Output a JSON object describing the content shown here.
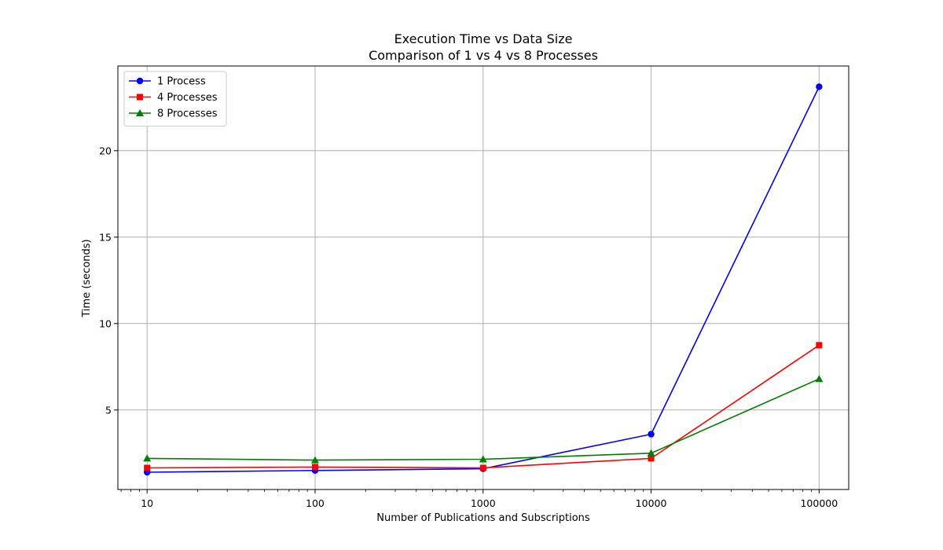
{
  "chart_data": {
    "type": "line",
    "title": "Execution Time vs Data Size",
    "subtitle": "Comparison of 1 vs 4 vs 8 Processes",
    "xlabel": "Number of Publications and Subscriptions",
    "ylabel": "Time (seconds)",
    "x_scale": "log",
    "x": [
      10,
      100,
      1000,
      10000,
      100000
    ],
    "xtick_labels": [
      "10",
      "100",
      "1000",
      "10000",
      "100000"
    ],
    "xlim": [
      6.7,
      150000
    ],
    "ylim": [
      0.4,
      24.9
    ],
    "yticks": [
      5,
      10,
      15,
      20
    ],
    "ytick_labels": [
      "5",
      "10",
      "15",
      "20"
    ],
    "grid": true,
    "legend_position": "top-left",
    "series": [
      {
        "name": "1 Process",
        "color": "#0000ff",
        "marker": "circle",
        "values": [
          1.4,
          1.5,
          1.6,
          3.6,
          23.7
        ]
      },
      {
        "name": "4 Processes",
        "color": "#ff0000",
        "marker": "square",
        "values": [
          1.65,
          1.7,
          1.65,
          2.2,
          8.75
        ]
      },
      {
        "name": "8 Processes",
        "color": "#008000",
        "marker": "triangle",
        "values": [
          2.2,
          2.1,
          2.15,
          2.5,
          6.8
        ]
      }
    ]
  }
}
